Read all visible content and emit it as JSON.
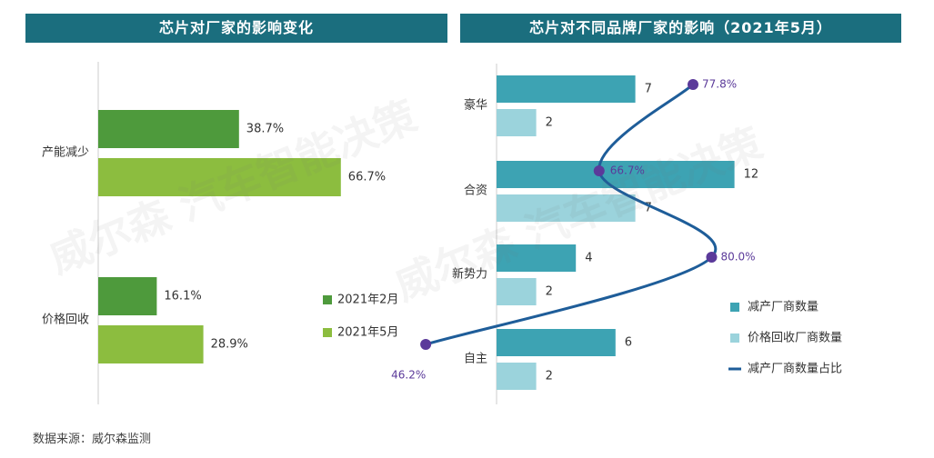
{
  "colors": {
    "title_bg": "#1b6e7e",
    "feb": "#4e9a3c",
    "may": "#8cbd3f",
    "reduce": "#3da3b3",
    "recall": "#9bd3dc",
    "line": "#1e5d99",
    "marker": "#5b3a9a"
  },
  "source": "数据来源：威尔森监测",
  "chart_data": [
    {
      "type": "bar",
      "orientation": "horizontal",
      "title": "芯片对厂家的影响变化",
      "categories": [
        "产能减少",
        "价格回收"
      ],
      "series": [
        {
          "name": "2021年2月",
          "values": [
            38.7,
            16.1
          ],
          "labels": [
            "38.7%",
            "16.1%"
          ]
        },
        {
          "name": "2021年5月",
          "values": [
            66.7,
            28.9
          ],
          "labels": [
            "66.7%",
            "28.9%"
          ]
        }
      ],
      "legend_position": "right"
    },
    {
      "type": "bar",
      "orientation": "horizontal",
      "title": "芯片对不同品牌厂家的影响（2021年5月）",
      "categories": [
        "豪华",
        "合资",
        "新势力",
        "自主"
      ],
      "series": [
        {
          "name": "减产厂商数量",
          "values": [
            7,
            12,
            4,
            6
          ]
        },
        {
          "name": "价格回收厂商数量",
          "values": [
            2,
            7,
            2,
            2
          ]
        }
      ],
      "line_series": {
        "name": "减产厂商数量占比",
        "values": [
          77.8,
          66.7,
          80.0,
          46.2
        ],
        "labels": [
          "77.8%",
          "66.7%",
          "80.0%",
          "46.2%"
        ]
      },
      "legend_position": "right"
    }
  ]
}
